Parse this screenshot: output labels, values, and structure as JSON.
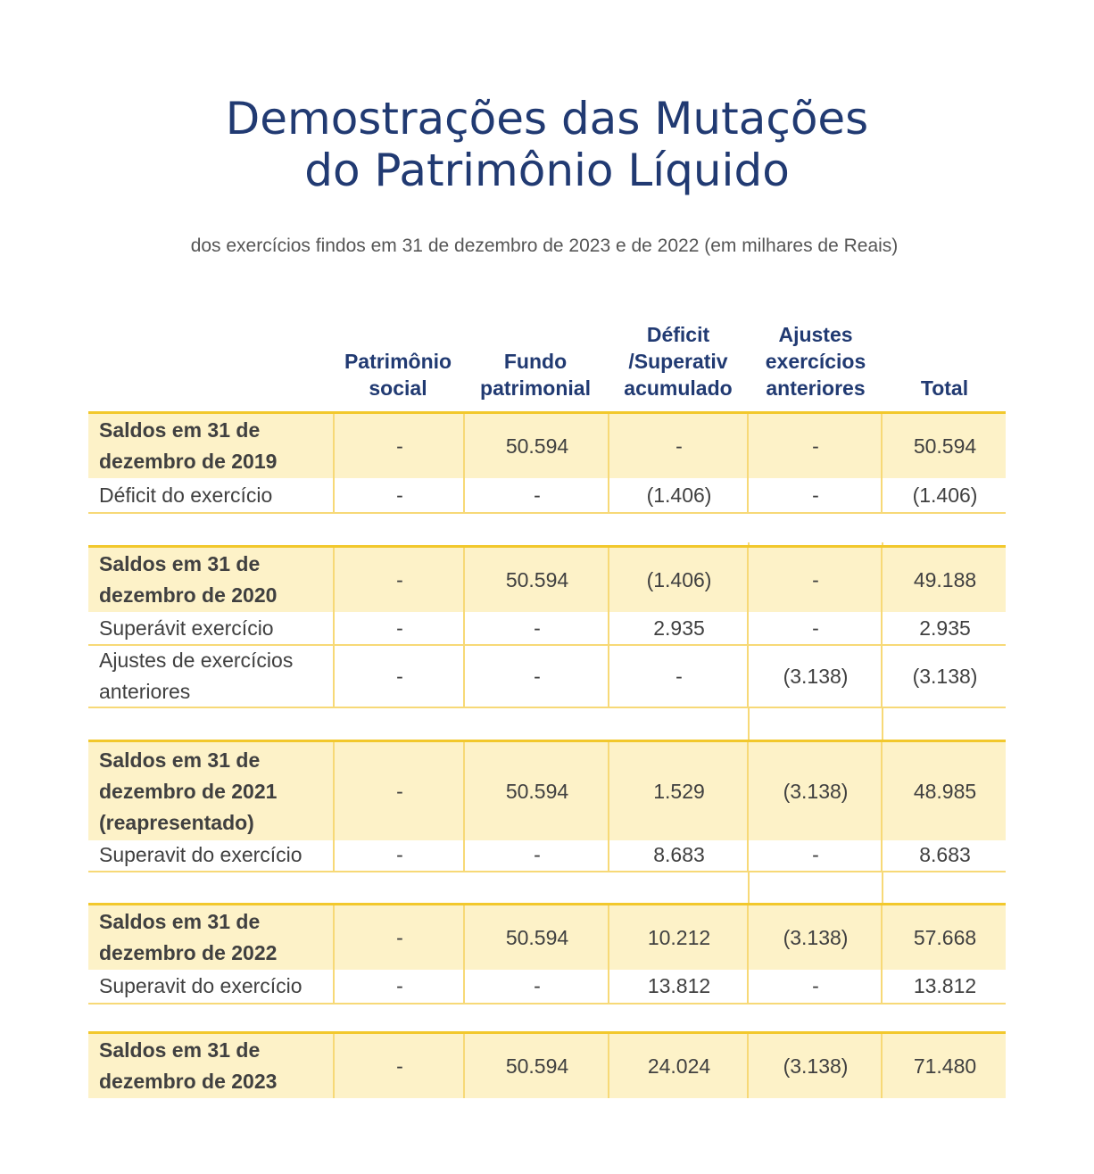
{
  "title_line1": "Demostrações das Mutações",
  "title_line2": "do Patrimônio Líquido",
  "subtitle": "dos exercícios findos em 31 de dezembro de 2023 e de 2022 (em milhares de Reais)",
  "headers": [
    "Patrimônio social",
    "Fundo patrimonial",
    "Déficit /Superativ acumulado",
    "Ajustes exercícios anteriores",
    "Total"
  ],
  "rows": [
    {
      "label": "Saldos em 31 de dezembro de 2019",
      "values": [
        "-",
        "50.594",
        "-",
        "-",
        "50.594"
      ]
    },
    {
      "label": "Déficit do exercício",
      "values": [
        "-",
        "-",
        "(1.406)",
        "-",
        "(1.406)"
      ]
    },
    {
      "label": "Saldos em 31 de dezembro de 2020",
      "values": [
        "-",
        "50.594",
        "(1.406)",
        "-",
        "49.188"
      ]
    },
    {
      "label": "Superávit exercício",
      "values": [
        "-",
        "-",
        "2.935",
        "-",
        "2.935"
      ]
    },
    {
      "label": "Ajustes de exercícios anteriores",
      "values": [
        "-",
        "-",
        "-",
        "(3.138)",
        "(3.138)"
      ]
    },
    {
      "label": "Saldos em 31 de dezembro de 2021 (reapresentado)",
      "values": [
        "-",
        "50.594",
        "1.529",
        "(3.138)",
        "48.985"
      ]
    },
    {
      "label": "Superavit do exercício",
      "values": [
        "-",
        "-",
        "8.683",
        "-",
        "8.683"
      ]
    },
    {
      "label": "Saldos em 31 de dezembro de 2022",
      "values": [
        "-",
        "50.594",
        "10.212",
        "(3.138)",
        "57.668"
      ]
    },
    {
      "label": "Superavit do exercício",
      "values": [
        "-",
        "-",
        "13.812",
        "-",
        "13.812"
      ]
    },
    {
      "label": "Saldos em 31 de dezembro de 2023",
      "values": [
        "-",
        "50.594",
        "24.024",
        "(3.138)",
        "71.480"
      ]
    }
  ]
}
